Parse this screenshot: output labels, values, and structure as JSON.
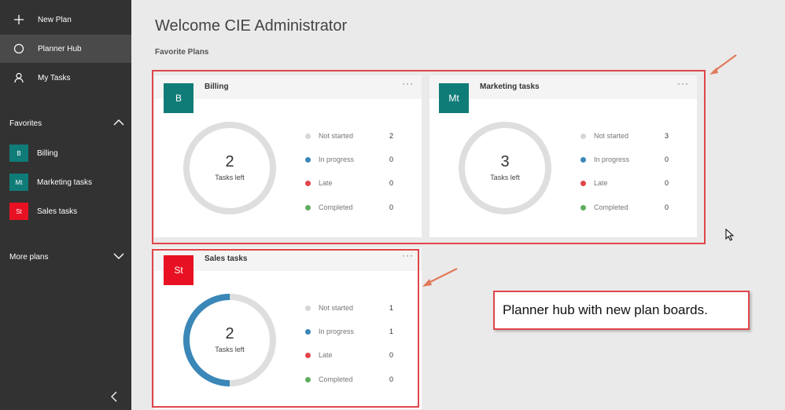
{
  "sidebar": {
    "nav": [
      {
        "label": "New Plan",
        "icon": "plus-icon"
      },
      {
        "label": "Planner Hub",
        "icon": "circle-icon"
      },
      {
        "label": "My Tasks",
        "icon": "person-icon"
      }
    ],
    "favorites_label": "Favorites",
    "favorites": [
      {
        "badge": "B",
        "label": "Billing",
        "color": "#107c78"
      },
      {
        "badge": "Mt",
        "label": "Marketing tasks",
        "color": "#107c78"
      },
      {
        "badge": "St",
        "label": "Sales tasks",
        "color": "#e81123"
      }
    ],
    "more_plans_label": "More plans"
  },
  "main": {
    "welcome": "Welcome CIE Administrator",
    "favorite_plans_label": "Favorite Plans",
    "legend_labels": [
      "Not started",
      "In progress",
      "Late",
      "Completed"
    ],
    "legend_colors": {
      "not_started": "#d6d6d6",
      "in_progress": "#3a87b8",
      "late": "#e0454a",
      "completed": "#5fae5f"
    },
    "plans": [
      {
        "badge": "B",
        "title": "Billing",
        "color": "#107c78",
        "tasks_left": "2",
        "tasks_left_label": "Tasks left",
        "more": "···",
        "counts": [
          "2",
          "0",
          "0",
          "0"
        ],
        "progress_fraction": 0
      },
      {
        "badge": "Mt",
        "title": "Marketing tasks",
        "color": "#107c78",
        "tasks_left": "3",
        "tasks_left_label": "Tasks left",
        "more": "···",
        "counts": [
          "3",
          "0",
          "0",
          "0"
        ],
        "progress_fraction": 0
      },
      {
        "badge": "St",
        "title": "Sales tasks",
        "color": "#e81123",
        "tasks_left": "2",
        "tasks_left_label": "Tasks left",
        "more": "···",
        "counts": [
          "1",
          "1",
          "0",
          "0"
        ],
        "progress_fraction": 0.5
      }
    ],
    "callout": "Planner hub with new plan boards."
  }
}
